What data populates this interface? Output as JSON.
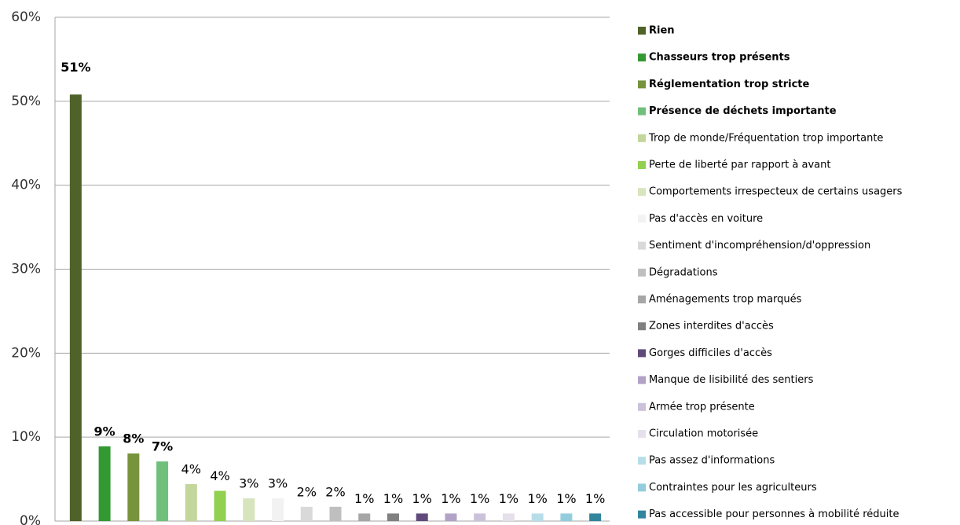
{
  "chart_data": {
    "type": "bar",
    "categories": [
      "Rien",
      "Chasseurs trop présents",
      "Réglementation trop stricte",
      "Présence de déchets importante",
      "Trop de monde/Fréquentation trop importante",
      "Perte de liberté par rapport à avant",
      "Comportements irrespecteux de certains usagers",
      "Pas d'accès en voiture",
      "Sentiment d'incompréhension/d'oppression",
      "Dégradations",
      "Aménagements trop marqués",
      "Zones interdites d'accès",
      "Gorges difficiles d'accès",
      "Manque de lisibilité des sentiers",
      "Armée trop présente",
      "Circulation motorisée",
      "Pas assez d'informations",
      "Contraintes pour les agriculteurs",
      "Pas accessible pour personnes à mobilité réduite"
    ],
    "values": [
      50.8,
      8.9,
      8.05,
      7.1,
      4.4,
      3.6,
      2.7,
      2.7,
      1.7,
      1.7,
      0.9,
      0.9,
      0.9,
      0.9,
      0.9,
      0.9,
      0.9,
      0.9,
      0.9
    ],
    "value_labels": [
      "51%",
      "9%",
      "8%",
      "7%",
      "4%",
      "4%",
      "3%",
      "3%",
      "2%",
      "2%",
      "1%",
      "1%",
      "1%",
      "1%",
      "1%",
      "1%",
      "1%",
      "1%",
      "1%"
    ],
    "colors": [
      "#4f6228",
      "#339933",
      "#77933c",
      "#70c07c",
      "#c3d69b",
      "#92d050",
      "#d7e4bd",
      "#f2f2f2",
      "#d9d9d9",
      "#bfbfbf",
      "#a6a6a6",
      "#808080",
      "#604a7b",
      "#b3a2c7",
      "#ccc1da",
      "#e6e0ec",
      "#b7dee8",
      "#93cddd",
      "#31859c"
    ],
    "ylim": [
      0,
      60
    ],
    "yticks": [
      {
        "value": 0,
        "label": "0%"
      },
      {
        "value": 10,
        "label": "10%"
      },
      {
        "value": 20,
        "label": "20%"
      },
      {
        "value": 30,
        "label": "30%"
      },
      {
        "value": 40,
        "label": "40%"
      },
      {
        "value": 50,
        "label": "50%"
      },
      {
        "value": 60,
        "label": "60%"
      }
    ],
    "grid": true,
    "legend": "right"
  }
}
